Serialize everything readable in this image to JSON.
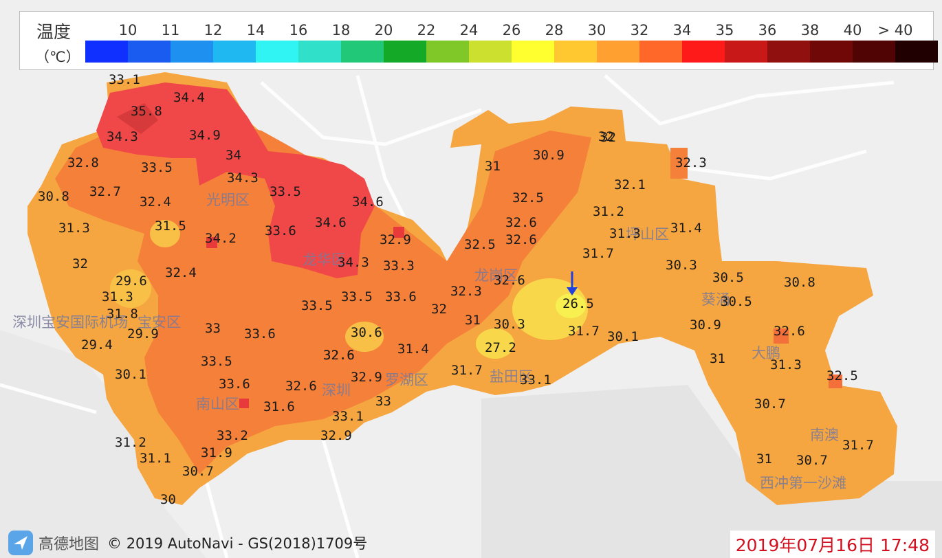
{
  "legend": {
    "title": "温度",
    "unit": "（℃）",
    "ticks": [
      "10",
      "11",
      "12",
      "14",
      "16",
      "18",
      "20",
      "22",
      "24",
      "26",
      "28",
      "30",
      "32",
      "34",
      "35",
      "36",
      "38",
      "40",
      "> 40"
    ],
    "colors": [
      "#1030ff",
      "#1a5cf0",
      "#1e90f0",
      "#20b8f0",
      "#30f4f4",
      "#30e0c8",
      "#20c878",
      "#14aa28",
      "#80c828",
      "#cce030",
      "#ffff30",
      "#ffc830",
      "#ffa030",
      "#ff6828",
      "#ff1a1a",
      "#c81818",
      "#901010",
      "#700808",
      "#500404",
      "#200000"
    ]
  },
  "places": [
    {
      "name": "光明区"
    },
    {
      "name": "龙华区"
    },
    {
      "name": "龙岗区"
    },
    {
      "name": "坪山区"
    },
    {
      "name": "葵涌"
    },
    {
      "name": "大鹏"
    },
    {
      "name": "南澳"
    },
    {
      "name": "西冲第一沙滩"
    },
    {
      "name": "深圳宝安国际机场"
    },
    {
      "name": "宝安区"
    },
    {
      "name": "罗湖区"
    },
    {
      "name": "盐田区"
    },
    {
      "name": "南山区"
    },
    {
      "name": "深圳"
    }
  ],
  "readings": [
    "33.1",
    "34.4",
    "35.8",
    "34.3",
    "34.9",
    "34",
    "34.3",
    "32.8",
    "33.5",
    "32.7",
    "32.4",
    "30.8",
    "31.3",
    "31.5",
    "33.5",
    "34.6",
    "33.6",
    "34.6",
    "34.2",
    "32.9",
    "32.4",
    "32",
    "29.6",
    "31.3",
    "31.8",
    "29.9",
    "29.4",
    "30.1",
    "33",
    "33.6",
    "33.5",
    "32.6",
    "33.5",
    "33.5",
    "33.6",
    "33.3",
    "34.3",
    "32.3",
    "32",
    "30.6",
    "32.6",
    "31.4",
    "32.9",
    "32.6",
    "33.6",
    "31.6",
    "33.1",
    "33.2",
    "32.9",
    "31.9",
    "31.2",
    "31.1",
    "30.7",
    "30",
    "31",
    "30.9",
    "32",
    "32.3",
    "32.1",
    "32.5",
    "31.2",
    "31.3",
    "31.4",
    "32.6",
    "32.6",
    "32.5",
    "31.7",
    "32.6",
    "30.3",
    "30.5",
    "30.8",
    "26.5",
    "30.5",
    "31.7",
    "30.1",
    "30.9",
    "30.3",
    "31",
    "27.2",
    "31.7",
    "33.1",
    "32.6",
    "31",
    "31.3",
    "32.5",
    "30.7",
    "31.7",
    "31",
    "30.7",
    "32",
    "33"
  ],
  "marker": {
    "icon": "arrow-down-icon",
    "color": "#2040e0"
  },
  "footer": {
    "logo": "高德地图",
    "copyright": "© 2019 AutoNavi - GS(2018)1709号",
    "timestamp": "2019年07月16日 17:48",
    "timestamp_color": "#d31020"
  }
}
